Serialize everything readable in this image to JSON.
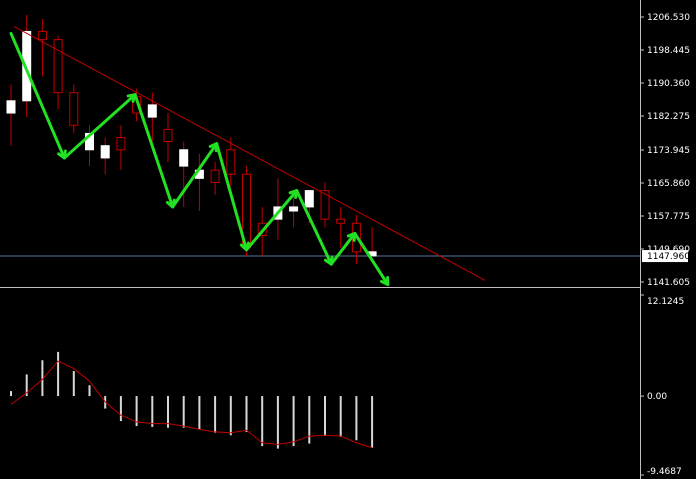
{
  "colors": {
    "background": "#000000",
    "axis": "#c0c0c0",
    "text": "#ffffff",
    "bull_body": "#ffffff",
    "bear_body": "#000000",
    "bear_wick": "#c00000",
    "bull_wick": "#c00000",
    "trendline": "#c00000",
    "zigzag": "#22e022",
    "price_line": "#5878a0",
    "osc_bar": "#d8d8d8",
    "osc_signal": "#c00000"
  },
  "chart_data": [
    {
      "type": "candlestick",
      "yaxis_ticks": [
        {
          "value": 1206.53,
          "label": "1206.530"
        },
        {
          "value": 1198.445,
          "label": "1198.445"
        },
        {
          "value": 1190.36,
          "label": "1190.360"
        },
        {
          "value": 1182.275,
          "label": "1182.275"
        },
        {
          "value": 1173.945,
          "label": "1173.945"
        },
        {
          "value": 1165.86,
          "label": "1165.860"
        },
        {
          "value": 1157.775,
          "label": "1157.775"
        },
        {
          "value": 1149.69,
          "label": "1149.690"
        },
        {
          "value": 1141.605,
          "label": "1141.605"
        }
      ],
      "ylim": [
        1140.5,
        1208.5
      ],
      "current_price": {
        "value": 1147.96,
        "label": "1147.960"
      },
      "candles": [
        {
          "o": 1183,
          "h": 1190,
          "l": 1175,
          "c": 1186
        },
        {
          "o": 1186,
          "h": 1207,
          "l": 1182,
          "c": 1203
        },
        {
          "o": 1203,
          "h": 1206,
          "l": 1192,
          "c": 1201
        },
        {
          "o": 1201,
          "h": 1202,
          "l": 1184,
          "c": 1188
        },
        {
          "o": 1188,
          "h": 1190,
          "l": 1178,
          "c": 1180
        },
        {
          "o": 1174,
          "h": 1180,
          "l": 1170,
          "c": 1178
        },
        {
          "o": 1172,
          "h": 1177,
          "l": 1168,
          "c": 1175
        },
        {
          "o": 1177,
          "h": 1180,
          "l": 1169,
          "c": 1174
        },
        {
          "o": 1187,
          "h": 1189,
          "l": 1181,
          "c": 1183
        },
        {
          "o": 1182,
          "h": 1188,
          "l": 1176,
          "c": 1185
        },
        {
          "o": 1179,
          "h": 1183,
          "l": 1171,
          "c": 1176
        },
        {
          "o": 1170,
          "h": 1176,
          "l": 1160,
          "c": 1174
        },
        {
          "o": 1167,
          "h": 1173,
          "l": 1159,
          "c": 1169
        },
        {
          "o": 1169,
          "h": 1171,
          "l": 1163,
          "c": 1166
        },
        {
          "o": 1174,
          "h": 1177,
          "l": 1165,
          "c": 1168
        },
        {
          "o": 1168,
          "h": 1170,
          "l": 1148,
          "c": 1150
        },
        {
          "o": 1156,
          "h": 1160,
          "l": 1148,
          "c": 1153
        },
        {
          "o": 1157,
          "h": 1167,
          "l": 1152,
          "c": 1160
        },
        {
          "o": 1159,
          "h": 1164,
          "l": 1155,
          "c": 1160
        },
        {
          "o": 1160,
          "h": 1164,
          "l": 1156,
          "c": 1164
        },
        {
          "o": 1164,
          "h": 1166,
          "l": 1155,
          "c": 1157
        },
        {
          "o": 1157,
          "h": 1160,
          "l": 1150,
          "c": 1156
        },
        {
          "o": 1156,
          "h": 1158,
          "l": 1146,
          "c": 1149
        },
        {
          "o": 1148,
          "h": 1155,
          "l": 1148,
          "c": 1149
        }
      ],
      "trendline": [
        {
          "i": 0.2,
          "v": 1204.2
        },
        {
          "i": 30.2,
          "v": 1142.0
        }
      ],
      "zigzag": [
        {
          "i": 0,
          "v": 1202.5
        },
        {
          "i": 3.4,
          "v": 1172.0
        },
        {
          "i": 7.9,
          "v": 1187.5
        },
        {
          "i": 10.3,
          "v": 1160.0
        },
        {
          "i": 13.1,
          "v": 1175.5
        },
        {
          "i": 15.0,
          "v": 1149.5
        },
        {
          "i": 18.2,
          "v": 1164.0
        },
        {
          "i": 20.4,
          "v": 1146.0
        },
        {
          "i": 21.9,
          "v": 1153.5
        },
        {
          "i": 24.0,
          "v": 1141.0
        }
      ]
    },
    {
      "type": "histogram",
      "yaxis_ticks": [
        {
          "value": 12.1245,
          "label": "12.1245"
        },
        {
          "value": 0.0,
          "label": "0.00"
        },
        {
          "value": -9.4687,
          "label": "-9.4687"
        }
      ],
      "ylim": [
        -9.4687,
        12.1245
      ],
      "values": [
        0.6,
        2.6,
        4.3,
        5.3,
        3.0,
        1.3,
        -1.5,
        -3.0,
        -3.6,
        -3.7,
        -3.8,
        -3.8,
        -4.0,
        -4.4,
        -4.7,
        -4.3,
        -6.0,
        -6.3,
        -6.0,
        -5.7,
        -4.8,
        -4.9,
        -5.3,
        -6.2
      ],
      "signal": [
        -1.0,
        0.4,
        2.0,
        4.2,
        3.3,
        1.8,
        -0.7,
        -2.3,
        -3.1,
        -3.3,
        -3.3,
        -3.6,
        -4.0,
        -4.3,
        -4.4,
        -4.1,
        -5.6,
        -5.8,
        -5.5,
        -4.8,
        -4.7,
        -4.8,
        -5.6,
        -6.2
      ]
    }
  ]
}
